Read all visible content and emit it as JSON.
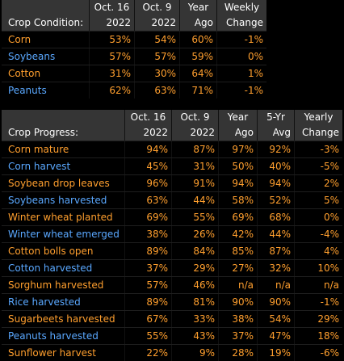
{
  "condition": {
    "header_row1": [
      "",
      "Oct. 16",
      "Oct. 9",
      "Year",
      "Weekly"
    ],
    "header_row2": [
      "Crop Condition:",
      "2022",
      "2022",
      "Ago",
      "Change"
    ],
    "rows": [
      {
        "name": "Corn",
        "v": [
          "53%",
          "54%",
          "60%",
          "-1%"
        ]
      },
      {
        "name": "Soybeans",
        "v": [
          "57%",
          "57%",
          "59%",
          "0%"
        ]
      },
      {
        "name": "Cotton",
        "v": [
          "31%",
          "30%",
          "64%",
          "1%"
        ]
      },
      {
        "name": "Peanuts",
        "v": [
          "62%",
          "63%",
          "71%",
          "-1%"
        ]
      }
    ]
  },
  "progress": {
    "header_row1": [
      "",
      "Oct. 16",
      "Oct. 9",
      "Year",
      "5-Yr",
      "Yearly"
    ],
    "header_row2": [
      "Crop Progress:",
      "2022",
      "2022",
      "Ago",
      "Avg",
      "Change"
    ],
    "rows": [
      {
        "name": "Corn mature",
        "v": [
          "94%",
          "87%",
          "97%",
          "92%",
          "-3%"
        ]
      },
      {
        "name": "Corn harvest",
        "v": [
          "45%",
          "31%",
          "50%",
          "40%",
          "-5%"
        ]
      },
      {
        "name": "Soybean drop leaves",
        "v": [
          "96%",
          "91%",
          "94%",
          "94%",
          "2%"
        ]
      },
      {
        "name": "Soybeans harvested",
        "v": [
          "63%",
          "44%",
          "58%",
          "52%",
          "5%"
        ]
      },
      {
        "name": "Winter wheat planted",
        "v": [
          "69%",
          "55%",
          "69%",
          "68%",
          "0%"
        ]
      },
      {
        "name": "Winter wheat emerged",
        "v": [
          "38%",
          "26%",
          "42%",
          "44%",
          "-4%"
        ]
      },
      {
        "name": "Cotton bolls open",
        "v": [
          "89%",
          "84%",
          "85%",
          "87%",
          "4%"
        ]
      },
      {
        "name": "Cotton harvested",
        "v": [
          "37%",
          "29%",
          "27%",
          "32%",
          "10%"
        ]
      },
      {
        "name": "Sorghum harvested",
        "v": [
          "57%",
          "46%",
          "n/a",
          "n/a",
          "n/a"
        ]
      },
      {
        "name": "Rice harvested",
        "v": [
          "89%",
          "81%",
          "90%",
          "90%",
          "-1%"
        ]
      },
      {
        "name": "Sugarbeets harvested",
        "v": [
          "67%",
          "33%",
          "38%",
          "54%",
          "29%"
        ]
      },
      {
        "name": "Peanuts harvested",
        "v": [
          "55%",
          "43%",
          "37%",
          "47%",
          "18%"
        ]
      },
      {
        "name": "Sunflower harvest",
        "v": [
          "22%",
          "9%",
          "28%",
          "19%",
          "-6%"
        ]
      }
    ]
  },
  "colors": {
    "alt_a": "#ff9f2e",
    "alt_b": "#5aa8ff",
    "header_bg": "#353535"
  }
}
